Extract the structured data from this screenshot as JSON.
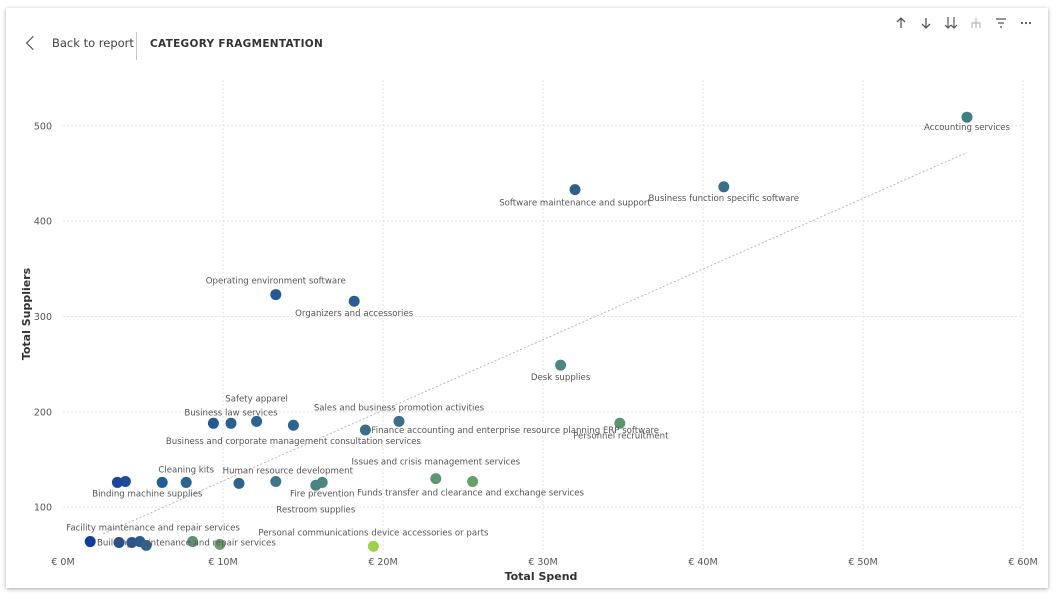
{
  "header": {
    "back_label": "Back to report",
    "title": "CATEGORY FRAGMENTATION"
  },
  "toolbar": [
    {
      "name": "drill-up-icon"
    },
    {
      "name": "drill-down-icon"
    },
    {
      "name": "expand-all-down-icon"
    },
    {
      "name": "hierarchy-icon"
    },
    {
      "name": "filter-icon"
    },
    {
      "name": "more-options-icon"
    }
  ],
  "chart_data": {
    "type": "scatter",
    "xlabel": "Total Spend",
    "ylabel": "Total Suppliers",
    "xlim": [
      0,
      60
    ],
    "ylim": [
      52,
      548
    ],
    "x_ticks": [
      0,
      10,
      20,
      30,
      40,
      50,
      60
    ],
    "x_tick_labels": [
      "€ 0M",
      "€ 10M",
      "€ 20M",
      "€ 30M",
      "€ 40M",
      "€ 50M",
      "€ 60M"
    ],
    "y_ticks": [
      100,
      200,
      300,
      400,
      500
    ],
    "y_tick_labels": [
      "100",
      "200",
      "300",
      "400",
      "500"
    ],
    "grid": true,
    "trendline": {
      "x": [
        2.5,
        56.5
      ],
      "y": [
        72,
        472
      ]
    },
    "points": [
      {
        "x": 56.5,
        "y": 509,
        "label": "Accounting services",
        "color": "#3f7f86"
      },
      {
        "x": 32.0,
        "y": 433,
        "label": "Software maintenance and support",
        "color": "#2d5f8c"
      },
      {
        "x": 41.3,
        "y": 436,
        "label": "Business function specific software",
        "color": "#3a6f8a"
      },
      {
        "x": 13.3,
        "y": 323,
        "label": "Operating environment software",
        "color": "#235a96"
      },
      {
        "x": 18.2,
        "y": 316,
        "label": "Organizers and accessories",
        "color": "#2a5e92"
      },
      {
        "x": 31.1,
        "y": 249,
        "label": "Desk supplies",
        "color": "#4a8584"
      },
      {
        "x": 12.1,
        "y": 190,
        "label": "Safety apparel",
        "color": "#2a6492"
      },
      {
        "x": 10.5,
        "y": 188,
        "label": "Business law services",
        "color": "#275f93"
      },
      {
        "x": 9.4,
        "y": 188,
        "label": "",
        "color": "#235a96"
      },
      {
        "x": 14.4,
        "y": 186,
        "label": "Business and corporate management consultation services",
        "color": "#2c6491"
      },
      {
        "x": 21.0,
        "y": 190,
        "label": "Sales and business promotion activities",
        "color": "#3b6e8c"
      },
      {
        "x": 18.9,
        "y": 181,
        "label": "Finance accounting and enterprise resource planning ERP software",
        "color": "#3a6d8c"
      },
      {
        "x": 34.8,
        "y": 188,
        "label": "Personnel recruitment",
        "color": "#5a956e"
      },
      {
        "x": 7.7,
        "y": 126,
        "label": "Cleaning kits",
        "color": "#2a6492"
      },
      {
        "x": 6.2,
        "y": 126,
        "label": "",
        "color": "#255e94"
      },
      {
        "x": 3.9,
        "y": 127,
        "label": "Binding machine supplies",
        "color": "#1c4f9a"
      },
      {
        "x": 3.4,
        "y": 126,
        "label": "",
        "color": "#18489c"
      },
      {
        "x": 11.0,
        "y": 125,
        "label": "",
        "color": "#2c6491"
      },
      {
        "x": 13.3,
        "y": 127,
        "label": "Human resource development",
        "color": "#3c778c"
      },
      {
        "x": 16.2,
        "y": 126,
        "label": "Fire prevention",
        "color": "#4c8780"
      },
      {
        "x": 15.8,
        "y": 123,
        "label": "Restroom supplies",
        "color": "#4a8482"
      },
      {
        "x": 23.3,
        "y": 130,
        "label": "Issues and crisis management services",
        "color": "#5e9870"
      },
      {
        "x": 25.6,
        "y": 127,
        "label": "Funds transfer and clearance and exchange services",
        "color": "#67a06a"
      },
      {
        "x": 1.7,
        "y": 64,
        "label": "Facility maintenance and repair services",
        "color": "#0e3d9c"
      },
      {
        "x": 3.5,
        "y": 63,
        "label": "Building maintenance and repair services",
        "color": "#1e4e98"
      },
      {
        "x": 4.3,
        "y": 63,
        "label": "",
        "color": "#23559a"
      },
      {
        "x": 4.8,
        "y": 64,
        "label": "",
        "color": "#275b96"
      },
      {
        "x": 5.2,
        "y": 60,
        "label": "",
        "color": "#2d6391"
      },
      {
        "x": 8.1,
        "y": 64,
        "label": "",
        "color": "#5e9172"
      },
      {
        "x": 9.8,
        "y": 61,
        "label": "",
        "color": "#6e9d6a"
      },
      {
        "x": 19.4,
        "y": 59,
        "label": "Personal communications device accessories or parts",
        "color": "#9bd24a"
      }
    ]
  }
}
